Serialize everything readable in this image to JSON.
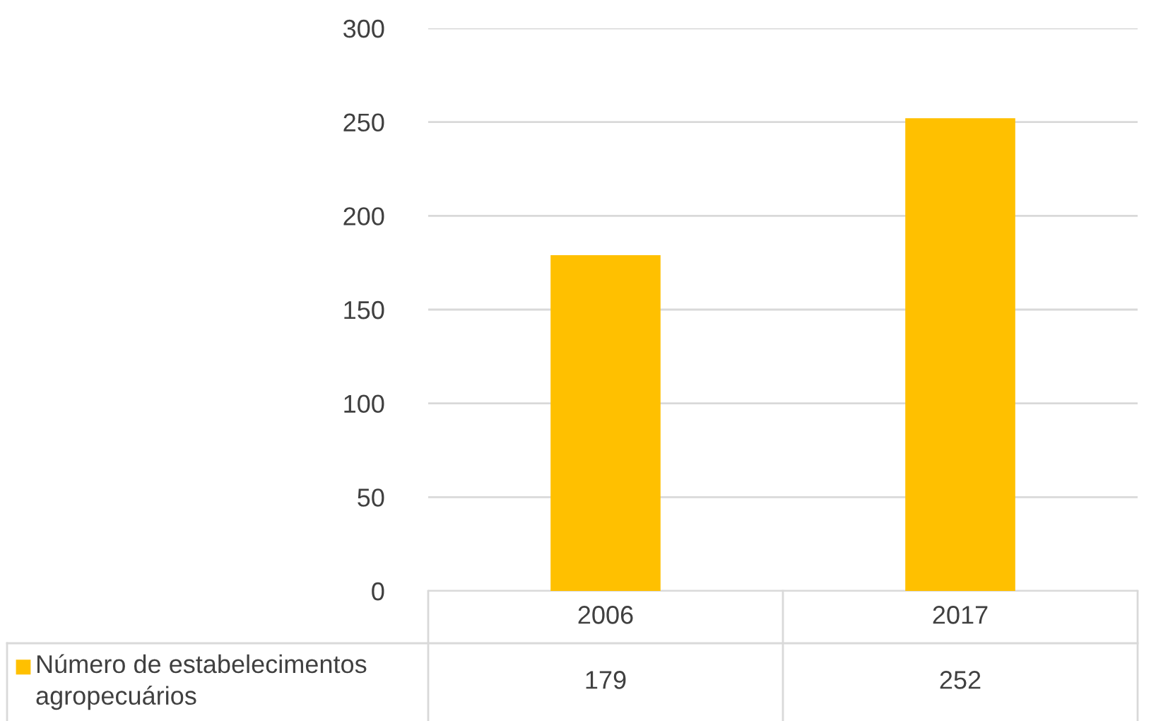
{
  "chart_data": {
    "type": "bar",
    "categories": [
      "2006",
      "2017"
    ],
    "series": [
      {
        "name": "Número de estabelecimentos\nagropecuários",
        "color": "#ffc000",
        "values": [
          179,
          252
        ]
      }
    ],
    "ylim": [
      0,
      300
    ],
    "yticks": [
      0,
      50,
      100,
      150,
      200,
      250,
      300
    ],
    "grid": "y",
    "data_labels": true,
    "legend": "bottom left"
  }
}
